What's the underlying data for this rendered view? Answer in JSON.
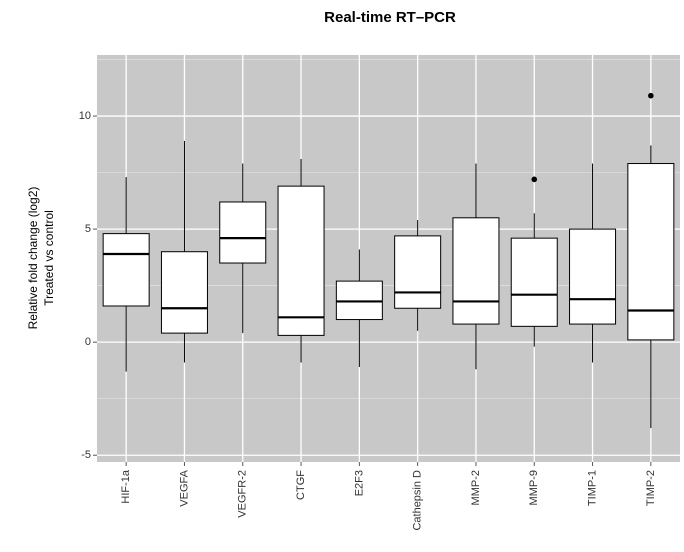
{
  "chart_data": {
    "type": "box",
    "title": "Real-time RT–PCR",
    "ylabel": [
      "Relative fold change (log2)",
      "Treated vs control"
    ],
    "categories": [
      "HIF-1a",
      "VEGFA",
      "VEGFR-2",
      "CTGF",
      "E2F3",
      "Cathepsin D",
      "MMP-2",
      "MMP-9",
      "TIMP-1",
      "TIMP-2"
    ],
    "boxes": [
      {
        "min": -1.3,
        "q1": 1.6,
        "median": 3.9,
        "q3": 4.8,
        "max": 7.3,
        "outliers": []
      },
      {
        "min": -0.9,
        "q1": 0.4,
        "median": 1.5,
        "q3": 4.0,
        "max": 8.9,
        "outliers": []
      },
      {
        "min": 0.4,
        "q1": 3.5,
        "median": 4.6,
        "q3": 6.2,
        "max": 7.9,
        "outliers": []
      },
      {
        "min": -0.9,
        "q1": 0.3,
        "median": 1.1,
        "q3": 6.9,
        "max": 8.1,
        "outliers": []
      },
      {
        "min": -1.1,
        "q1": 1.0,
        "median": 1.8,
        "q3": 2.7,
        "max": 4.1,
        "outliers": []
      },
      {
        "min": 0.5,
        "q1": 1.5,
        "median": 2.2,
        "q3": 4.7,
        "max": 5.4,
        "outliers": []
      },
      {
        "min": -1.2,
        "q1": 0.8,
        "median": 1.8,
        "q3": 5.5,
        "max": 7.9,
        "outliers": []
      },
      {
        "min": -0.2,
        "q1": 0.7,
        "median": 2.1,
        "q3": 4.6,
        "max": 5.7,
        "outliers": [
          7.2
        ]
      },
      {
        "min": -0.9,
        "q1": 0.8,
        "median": 1.9,
        "q3": 5.0,
        "max": 7.9,
        "outliers": []
      },
      {
        "min": -3.8,
        "q1": 0.1,
        "median": 1.4,
        "q3": 7.9,
        "max": 8.7,
        "outliers": [
          10.9
        ]
      }
    ],
    "ylim": [
      -5.3,
      12.7
    ],
    "yticks": [
      -5,
      0,
      5,
      10
    ],
    "minor_yticks": [
      -2.5,
      2.5,
      7.5,
      12.5
    ],
    "grid": true,
    "background": "#c8c8c8",
    "box_fill": "#ffffff",
    "line_color": "#000000"
  }
}
